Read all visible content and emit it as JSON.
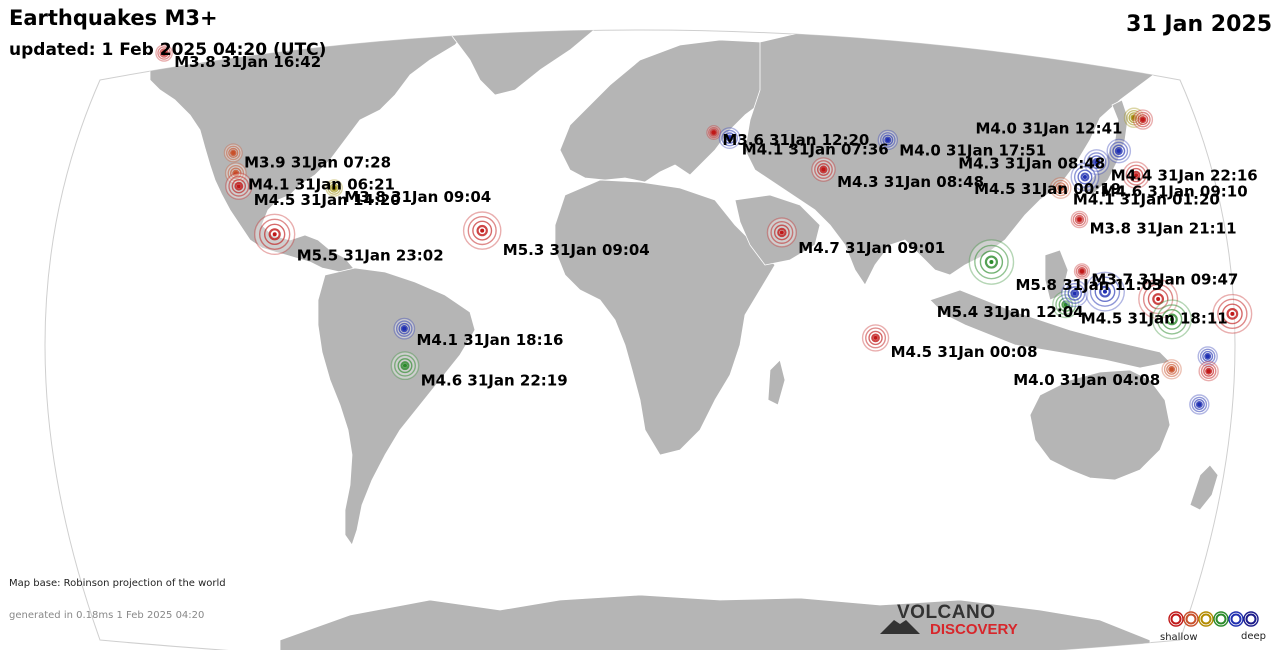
{
  "header": {
    "title": "Earthquakes M3+",
    "updated": "updated:  1 Feb 2025 04:20 (UTC)",
    "date": "31 Jan 2025"
  },
  "footer": {
    "map_base": "Map base: Robinson projection of the world",
    "generated": "generated in 0.18ms  1 Feb 2025 04:20"
  },
  "logo": {
    "line1": "VOLCANO",
    "line2": "DISCOVERY"
  },
  "legend": {
    "shallow_label": "shallow",
    "deep_label": "deep",
    "colors": [
      "#c01818",
      "#c8502a",
      "#b38b00",
      "#2a8a2a",
      "#1f2fb0",
      "#1a1a8a"
    ]
  },
  "depth_colors": {
    "shallow": "#c01818",
    "shallow_orange": "#c8502a",
    "mid_yellow": "#9a8a00",
    "intermediate_green": "#2a8a2a",
    "deep_blue": "#1f2fb0"
  },
  "quakes": [
    {
      "label": "M3.8 31Jan 16:42",
      "depth": "shallow",
      "mag": 3.8,
      "lon": -137.5,
      "lat": 60.0
    },
    {
      "label": "M3.9 31Jan 07:28",
      "depth": "shallow_orange",
      "mag": 3.9,
      "lon": -115.5,
      "lat": 33.0
    },
    {
      "label": "M4.1 31Jan 06:21",
      "depth": "shallow_orange",
      "mag": 4.1,
      "lon": -114.5,
      "lat": 27.5
    },
    {
      "label": "M4.5 31Jan 14:20",
      "depth": "shallow",
      "mag": 4.5,
      "lon": -113.5,
      "lat": 24.0
    },
    {
      "label": "M3.8 31Jan 09:04",
      "depth": "mid_yellow",
      "mag": 3.8,
      "lon": -86.5,
      "lat": 23.5
    },
    {
      "label": "M5.5 31Jan 23:02",
      "depth": "shallow",
      "mag": 5.5,
      "lon": -103.0,
      "lat": 11.0
    },
    {
      "label": "M5.3 31Jan 09:04",
      "depth": "shallow",
      "mag": 5.3,
      "lon": -44.5,
      "lat": 12.0
    },
    {
      "label": "M4.1 31Jan 18:16",
      "depth": "deep_blue",
      "mag": 4.1,
      "lon": -66.5,
      "lat": -14.5
    },
    {
      "label": "M4.6 31Jan 22:19",
      "depth": "intermediate_green",
      "mag": 4.6,
      "lon": -66.5,
      "lat": -24.5
    },
    {
      "label": "M3.6 31Jan 12:20",
      "depth": "shallow",
      "mag": 3.6,
      "lon": 21.0,
      "lat": 38.5
    },
    {
      "label": "M4.1 31Jan 07:36",
      "depth": "deep_blue",
      "mag": 4.1,
      "lon": 25.5,
      "lat": 37.0
    },
    {
      "label": "M4.3 31Jan 08:48",
      "depth": "shallow",
      "mag": 4.3,
      "lon": 52.0,
      "lat": 28.5
    },
    {
      "label": "M4.7 31Jan 09:01",
      "depth": "shallow",
      "mag": 4.7,
      "lon": 40.0,
      "lat": 11.5
    },
    {
      "label": "M4.0 31Jan 17:51",
      "depth": "deep_blue",
      "mag": 4.0,
      "lon": 70.5,
      "lat": 36.5
    },
    {
      "label": "M4.5 31Jan 00:08",
      "depth": "shallow",
      "mag": 4.5,
      "lon": 66.5,
      "lat": -17.0
    },
    {
      "label": "M4.0 31Jan 12:41",
      "depth": "mid_yellow",
      "mag": 4.0,
      "lon": 141.0,
      "lat": 42.5
    },
    {
      "label": "M4.0 31Jan 12:41",
      "depth": "shallow",
      "mag": 4.0,
      "lon": 143.5,
      "lat": 42.0
    },
    {
      "label": "M4.3 31Jan 08:48",
      "depth": "deep_blue",
      "mag": 4.3,
      "lon": 136.0,
      "lat": 33.5
    },
    {
      "label": "M4.4 31Jan 22:16",
      "depth": "deep_blue",
      "mag": 4.4,
      "lon": 129.5,
      "lat": 30.5
    },
    {
      "label": "M4.6 31Jan 09:10",
      "depth": "deep_blue",
      "mag": 4.6,
      "lon": 126.0,
      "lat": 26.5
    },
    {
      "label": "M4.5 31Jan 00:19",
      "depth": "shallow",
      "mag": 4.5,
      "lon": 140.5,
      "lat": 27.0
    },
    {
      "label": "M4.1 31Jan 01:20",
      "depth": "shallow_orange",
      "mag": 4.1,
      "lon": 119.0,
      "lat": 23.5
    },
    {
      "label": "M3.8 31Jan 21:11",
      "depth": "shallow",
      "mag": 3.8,
      "lon": 124.0,
      "lat": 15.0
    },
    {
      "label": "M5.8 31Jan 11:03",
      "depth": "intermediate_green",
      "mag": 5.8,
      "lon": 99.0,
      "lat": 3.5
    },
    {
      "label": "M3.7 31Jan 09:47",
      "depth": "shallow",
      "mag": 3.7,
      "lon": 124.5,
      "lat": 1.0
    },
    {
      "label": "M4.5 31Jan 18:11",
      "depth": "intermediate_green",
      "mag": 4.5,
      "lon": 120.0,
      "lat": -8.0
    },
    {
      "label": "M4.5 31Jan 18:11",
      "depth": "deep_blue",
      "mag": 4.5,
      "lon": 122.5,
      "lat": -5.0
    },
    {
      "label": "M5.4 31Jan 12:04",
      "depth": "deep_blue",
      "mag": 5.4,
      "lon": 131.0,
      "lat": -4.5
    },
    {
      "label": "M5.4 31Jan 12:04",
      "depth": "shallow",
      "mag": 5.4,
      "lon": 146.0,
      "lat": -6.5
    },
    {
      "label": "M5.4 31Jan 12:04",
      "depth": "intermediate_green",
      "mag": 5.4,
      "lon": 150.0,
      "lat": -12.0
    },
    {
      "label": "M5.4 31Jan 12:04",
      "depth": "shallow",
      "mag": 5.4,
      "lon": 167.0,
      "lat": -10.5
    },
    {
      "label": "M4.0 31Jan 04:08",
      "depth": "shallow_orange",
      "mag": 4.0,
      "lon": 150.5,
      "lat": -25.5
    },
    {
      "label": "M4.0 31Jan 04:08",
      "depth": "deep_blue",
      "mag": 4.0,
      "lon": 160.5,
      "lat": -22.0
    },
    {
      "label": "M4.0 31Jan 04:08",
      "depth": "shallow",
      "mag": 4.0,
      "lon": 161.0,
      "lat": -26.0
    },
    {
      "label": "M4.0 31Jan 04:08",
      "depth": "deep_blue",
      "mag": 4.0,
      "lon": 159.0,
      "lat": -35.0
    }
  ],
  "labels": [
    {
      "text": "M3.8 31Jan 16:42",
      "quake": 0
    },
    {
      "text": "M3.9 31Jan 07:28",
      "quake": 1
    },
    {
      "text": "M4.1 31Jan 06:21",
      "quake": 2
    },
    {
      "text": "M4.5 31Jan 14:20",
      "quake": 3
    },
    {
      "text": "M3.8 31Jan 09:04",
      "quake": 4
    },
    {
      "text": "M5.5 31Jan 23:02",
      "quake": 5
    },
    {
      "text": "M5.3 31Jan 09:04",
      "quake": 6
    },
    {
      "text": "M4.1 31Jan 18:16",
      "quake": 7
    },
    {
      "text": "M4.6 31Jan 22:19",
      "quake": 8
    },
    {
      "text": "M3.6 31Jan 12:20",
      "quake": 9
    },
    {
      "text": "M4.1 31Jan 07:36",
      "quake": 10
    },
    {
      "text": "M4.3 31Jan 08:48",
      "quake": 11
    },
    {
      "text": "M4.7 31Jan 09:01",
      "quake": 12
    },
    {
      "text": "M4.0 31Jan 17:51",
      "quake": 13
    },
    {
      "text": "M4.5 31Jan 00:08",
      "quake": 14
    },
    {
      "text": "M4.0 31Jan 12:41",
      "quake": 15
    },
    {
      "text": "M4.3 31Jan 08:48",
      "quake": 17
    },
    {
      "text": "M4.4 31Jan 22:16",
      "quake": 18
    },
    {
      "text": "M4.5 31Jan 00:19",
      "quake": 20
    },
    {
      "text": "M4.6 31Jan 09:10",
      "quake": 19
    },
    {
      "text": "M4.1 31Jan 01:20",
      "quake": 21
    },
    {
      "text": "M3.8 31Jan 21:11",
      "quake": 22
    },
    {
      "text": "M5.8 31Jan 11:03",
      "quake": 23
    },
    {
      "text": "M3.7 31Jan 09:47",
      "quake": 24
    },
    {
      "text": "M4.5 31Jan 18:11",
      "quake": 25
    },
    {
      "text": "M5.4 31Jan 12:04",
      "quake": 27
    },
    {
      "text": "M4.0 31Jan 04:08",
      "quake": 31
    }
  ]
}
